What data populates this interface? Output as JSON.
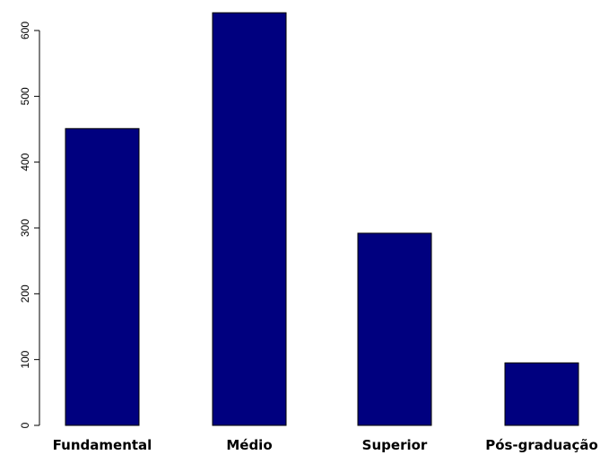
{
  "chart_data": {
    "type": "bar",
    "categories": [
      "Fundamental",
      "Médio",
      "Superior",
      "Pós-graduação"
    ],
    "values": [
      451,
      627,
      292,
      95
    ],
    "title": "",
    "xlabel": "",
    "ylabel": "",
    "ylim": [
      0,
      640
    ],
    "yticks": [
      0,
      100,
      200,
      300,
      400,
      500,
      600
    ],
    "bar_color": "#00007f",
    "grid": false
  }
}
